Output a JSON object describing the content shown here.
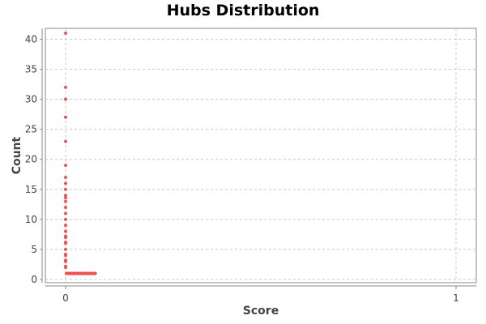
{
  "chart_data": {
    "type": "scatter",
    "title": "Hubs Distribution",
    "xlabel": "Score",
    "ylabel": "Count",
    "xlim": [
      0,
      1
    ],
    "ylim": [
      0,
      41
    ],
    "x_ticks": [
      0,
      1
    ],
    "y_ticks": [
      0,
      5,
      10,
      15,
      20,
      25,
      30,
      35,
      40
    ],
    "grid": true,
    "point_color": "#ef5350",
    "series": [
      {
        "points": [
          [
            0,
            41
          ],
          [
            0,
            32
          ],
          [
            0,
            30
          ],
          [
            0,
            27
          ],
          [
            0,
            23
          ],
          [
            0,
            19
          ],
          [
            0,
            17
          ],
          [
            0,
            16
          ],
          [
            0,
            15
          ],
          [
            0,
            14
          ],
          [
            0,
            13.6
          ],
          [
            0,
            13
          ],
          [
            0,
            12
          ],
          [
            0,
            11
          ],
          [
            0,
            10
          ],
          [
            0,
            9
          ],
          [
            0,
            8
          ],
          [
            0,
            7.2
          ],
          [
            0,
            7
          ],
          [
            0,
            6.2
          ],
          [
            0,
            6
          ],
          [
            0,
            5
          ],
          [
            0,
            4.2
          ],
          [
            0,
            4
          ],
          [
            0,
            3.2
          ],
          [
            0,
            3
          ],
          [
            0,
            2.2
          ],
          [
            0,
            2
          ],
          [
            0.002,
            1
          ],
          [
            0.004,
            1
          ],
          [
            0.006,
            1
          ],
          [
            0.008,
            1
          ],
          [
            0.01,
            1
          ],
          [
            0.012,
            1
          ],
          [
            0.014,
            1
          ],
          [
            0.016,
            1
          ],
          [
            0.018,
            1
          ],
          [
            0.02,
            1
          ],
          [
            0.022,
            1
          ],
          [
            0.024,
            1
          ],
          [
            0.026,
            1
          ],
          [
            0.028,
            1
          ],
          [
            0.03,
            1
          ],
          [
            0.032,
            1
          ],
          [
            0.034,
            1
          ],
          [
            0.036,
            1
          ],
          [
            0.038,
            1
          ],
          [
            0.04,
            1
          ],
          [
            0.042,
            1
          ],
          [
            0.044,
            1
          ],
          [
            0.046,
            1
          ],
          [
            0.048,
            1
          ],
          [
            0.05,
            1
          ],
          [
            0.052,
            1
          ],
          [
            0.054,
            1
          ],
          [
            0.056,
            1
          ],
          [
            0.058,
            1
          ],
          [
            0.06,
            1
          ],
          [
            0.062,
            1
          ],
          [
            0.064,
            1
          ],
          [
            0.066,
            1
          ],
          [
            0.068,
            1
          ],
          [
            0.07,
            1
          ],
          [
            0.072,
            1
          ],
          [
            0.074,
            1
          ],
          [
            0.076,
            1
          ]
        ]
      }
    ]
  }
}
